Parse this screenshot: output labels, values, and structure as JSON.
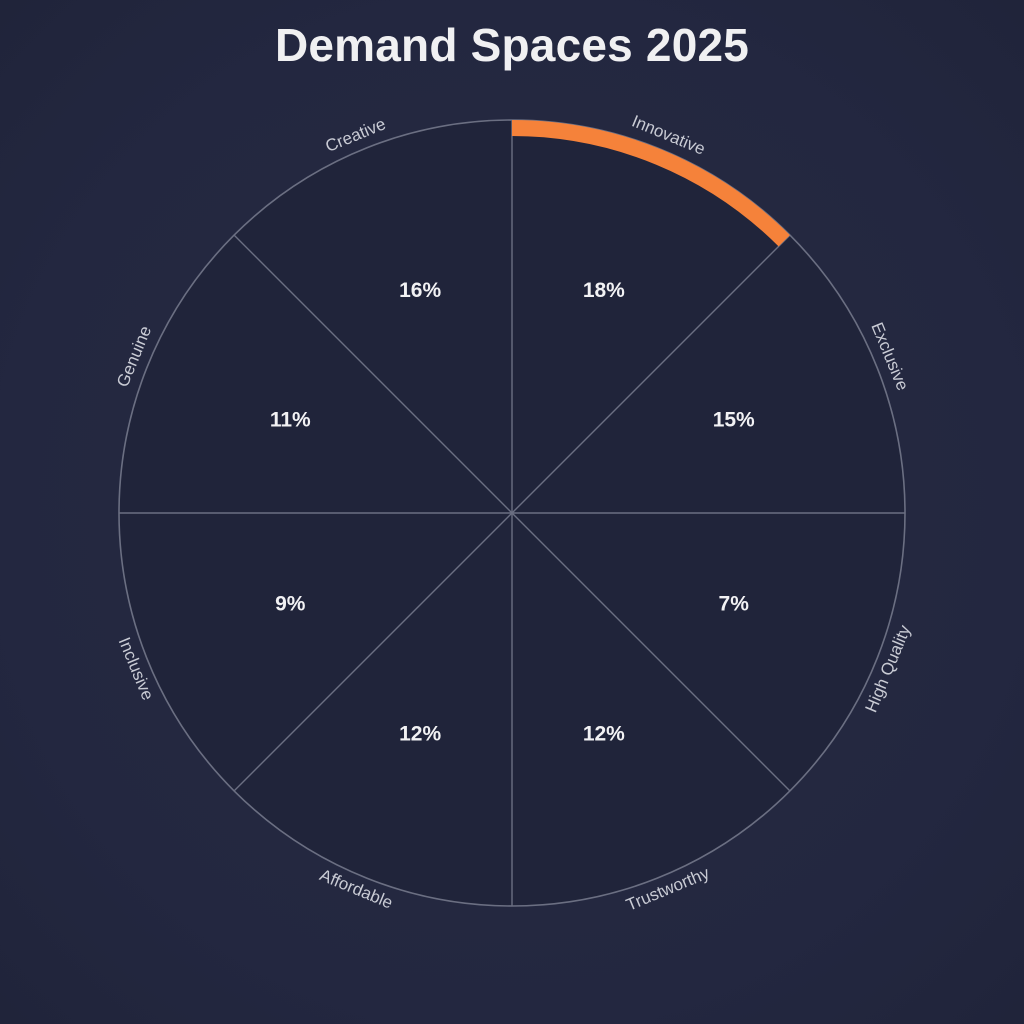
{
  "chart_data": {
    "type": "pie",
    "title": "Demand Spaces 2025",
    "categories": [
      "Innovative",
      "Exclusive",
      "High Quality",
      "Trustworthy",
      "Affordable",
      "Inclusive",
      "Genuine",
      "Creative"
    ],
    "values": [
      18,
      15,
      7,
      12,
      12,
      9,
      11,
      16
    ],
    "value_labels": [
      "18%",
      "15%",
      "7%",
      "12%",
      "12%",
      "9%",
      "11%",
      "16%"
    ],
    "highlighted": "Innovative",
    "colors": {
      "segment_fill": "#20243a",
      "divider": "#6b6f82",
      "highlight": "#f5823a"
    }
  }
}
